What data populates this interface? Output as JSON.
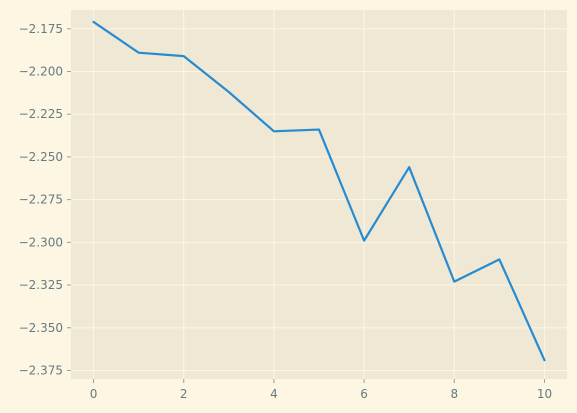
{
  "chart_data": {
    "type": "line",
    "title": "",
    "xlabel": "",
    "ylabel": "",
    "x": [
      0,
      1,
      2,
      3,
      4,
      5,
      6,
      7,
      8,
      9,
      10
    ],
    "series": [
      {
        "values": [
          -2.171,
          -2.189,
          -2.191,
          -2.212,
          -2.235,
          -2.234,
          -2.299,
          -2.256,
          -2.323,
          -2.31,
          -2.369
        ],
        "color": "#268bd2"
      }
    ],
    "xlim": [
      -0.5,
      10.5
    ],
    "ylim": [
      -2.38,
      -2.164
    ],
    "xticks": [
      0,
      2,
      4,
      6,
      8,
      10
    ],
    "xtick_labels": [
      "0",
      "2",
      "4",
      "6",
      "8",
      "10"
    ],
    "yticks": [
      -2.175,
      -2.2,
      -2.225,
      -2.25,
      -2.275,
      -2.3,
      -2.325,
      -2.35,
      -2.375
    ],
    "ytick_labels": [
      "−2.175",
      "−2.200",
      "−2.225",
      "−2.250",
      "−2.275",
      "−2.300",
      "−2.325",
      "−2.350",
      "−2.375"
    ],
    "grid": true,
    "legend": "none",
    "colors": {
      "figure_background": "#fdf6e3",
      "axes_background": "#eee8d5",
      "grid": "#fdf6e3",
      "tick_text": "#657b83",
      "tick_mark": "#93a1a1"
    }
  }
}
